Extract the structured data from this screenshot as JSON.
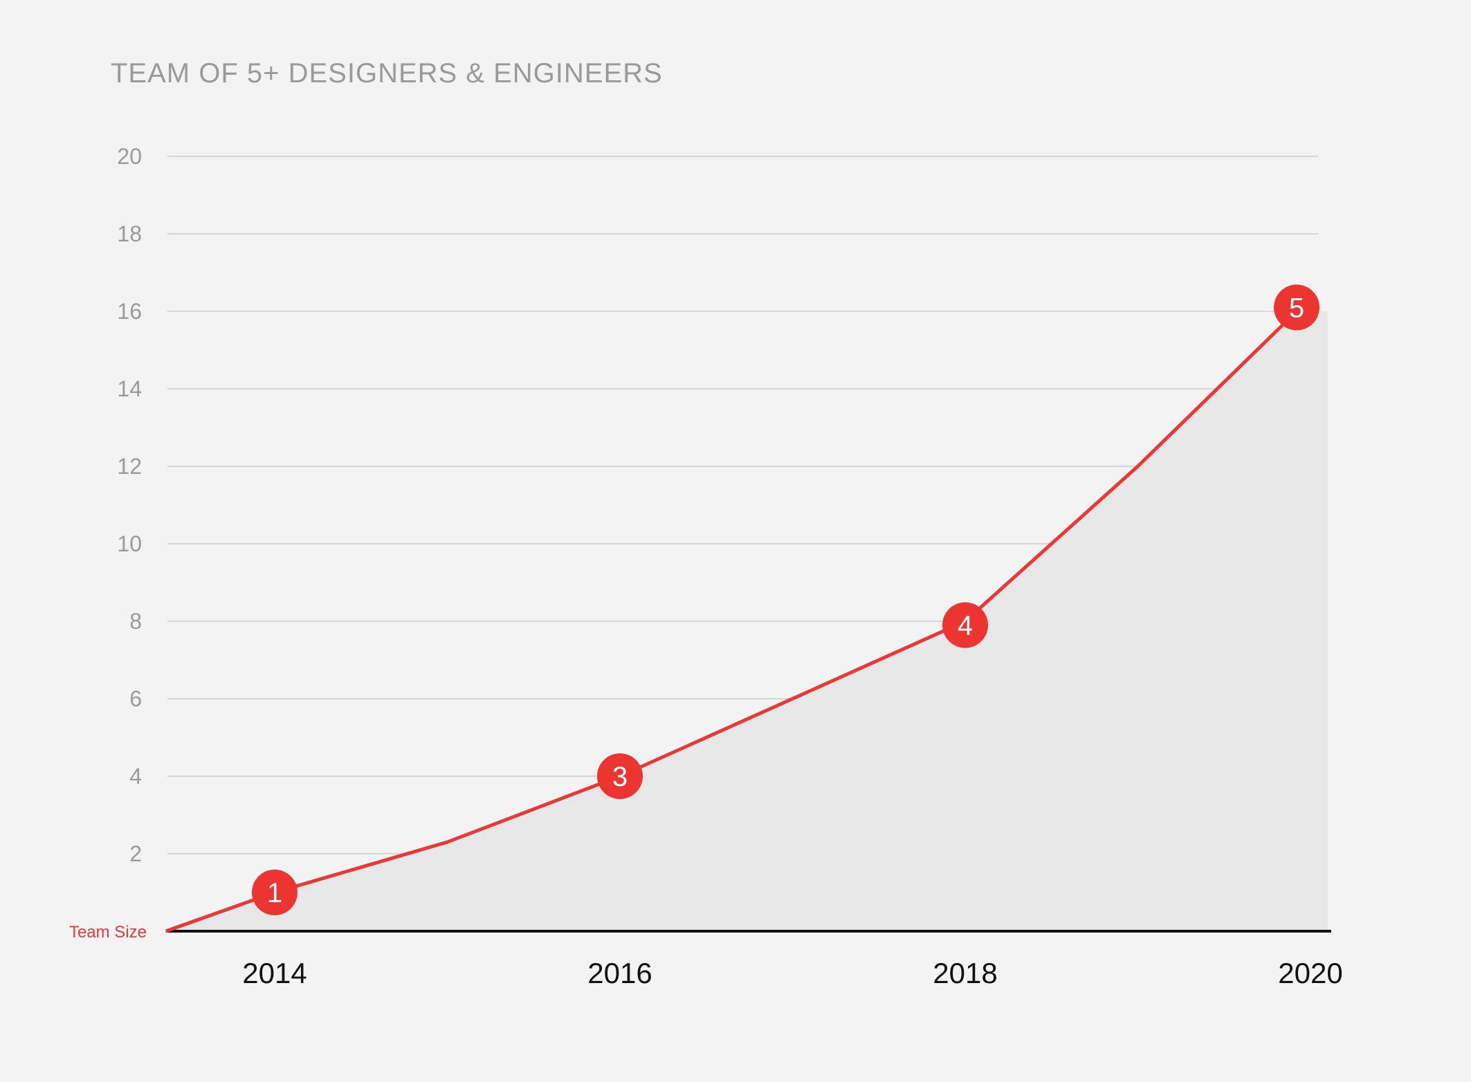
{
  "chart_data": {
    "type": "area",
    "title": "TEAM OF 5+ DESIGNERS & ENGINEERS",
    "xlabel": "",
    "ylabel": "",
    "series_label": "Team Size",
    "x_ticks": [
      2014,
      2016,
      2018,
      2020
    ],
    "x_range": [
      2013.37,
      2020.1
    ],
    "y_ticks": [
      2,
      4,
      6,
      8,
      10,
      12,
      14,
      16,
      18,
      20
    ],
    "ylim": [
      0,
      20
    ],
    "grid": true,
    "series": [
      {
        "name": "Team Size",
        "x": [
          2013.37,
          2014,
          2015,
          2016,
          2017,
          2018,
          2019,
          2019.92,
          2020.1
        ],
        "values": [
          0,
          1,
          2.3,
          4,
          6,
          8,
          12,
          16,
          16
        ]
      }
    ],
    "markers": [
      {
        "label": "1",
        "x": 2014,
        "y": 1.0
      },
      {
        "label": "3",
        "x": 2016,
        "y": 4.0
      },
      {
        "label": "4",
        "x": 2018,
        "y": 7.9
      },
      {
        "label": "5",
        "x": 2019.92,
        "y": 16.1
      }
    ],
    "colors": {
      "line": "#ea3834",
      "marker": "#ec3431",
      "marker_text": "#ffffff",
      "area": "#e7e7e7",
      "grid": "#d6d6d6",
      "baseline": "#111111",
      "series_tag": "#e23a36"
    }
  }
}
